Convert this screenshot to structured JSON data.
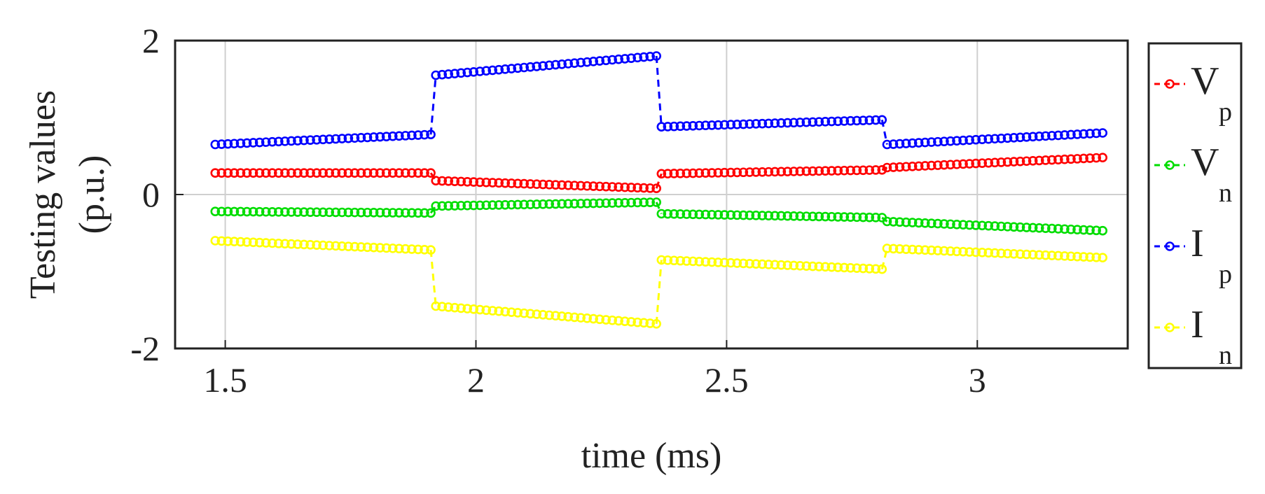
{
  "chart_data": {
    "type": "scatter",
    "title": "",
    "xlabel": "time (ms)",
    "ylabel_line1": "Testing values",
    "ylabel_line2": "(p.u.)",
    "xlim": [
      1.4,
      3.3
    ],
    "ylim": [
      -2,
      2
    ],
    "grid": true,
    "legend_position": "outside-right",
    "x_ticks": [
      {
        "value": 1.5,
        "label": "1.5"
      },
      {
        "value": 2,
        "label": "2"
      },
      {
        "value": 2.5,
        "label": "2.5"
      },
      {
        "value": 3,
        "label": "3"
      }
    ],
    "y_ticks": [
      {
        "value": -2,
        "label": "-2"
      },
      {
        "value": 0,
        "label": "0"
      },
      {
        "value": 2,
        "label": "2"
      }
    ],
    "point_step": 0.0125,
    "series": [
      {
        "name": "V",
        "subscript": "p",
        "color": "#ff0000",
        "segments": [
          {
            "x0": 1.48,
            "x1": 1.91,
            "y0": 0.28,
            "y1": 0.28
          },
          {
            "x0": 1.92,
            "x1": 2.36,
            "y0": 0.18,
            "y1": 0.08
          },
          {
            "x0": 2.37,
            "x1": 2.81,
            "y0": 0.27,
            "y1": 0.32
          },
          {
            "x0": 2.82,
            "x1": 3.25,
            "y0": 0.35,
            "y1": 0.48
          }
        ]
      },
      {
        "name": "V",
        "subscript": "n",
        "color": "#00dd00",
        "segments": [
          {
            "x0": 1.48,
            "x1": 1.91,
            "y0": -0.22,
            "y1": -0.24
          },
          {
            "x0": 1.92,
            "x1": 2.36,
            "y0": -0.15,
            "y1": -0.1
          },
          {
            "x0": 2.37,
            "x1": 2.81,
            "y0": -0.25,
            "y1": -0.3
          },
          {
            "x0": 2.82,
            "x1": 3.25,
            "y0": -0.35,
            "y1": -0.47
          }
        ]
      },
      {
        "name": "I",
        "subscript": "p",
        "color": "#0000ff",
        "segments": [
          {
            "x0": 1.48,
            "x1": 1.91,
            "y0": 0.65,
            "y1": 0.78
          },
          {
            "x0": 1.92,
            "x1": 2.36,
            "y0": 1.55,
            "y1": 1.8
          },
          {
            "x0": 2.37,
            "x1": 2.81,
            "y0": 0.88,
            "y1": 0.97
          },
          {
            "x0": 2.82,
            "x1": 3.25,
            "y0": 0.65,
            "y1": 0.8
          }
        ]
      },
      {
        "name": "I",
        "subscript": "n",
        "color": "#ffff00",
        "segments": [
          {
            "x0": 1.48,
            "x1": 1.91,
            "y0": -0.6,
            "y1": -0.72
          },
          {
            "x0": 1.92,
            "x1": 2.36,
            "y0": -1.45,
            "y1": -1.68
          },
          {
            "x0": 2.37,
            "x1": 2.81,
            "y0": -0.85,
            "y1": -0.97
          },
          {
            "x0": 2.82,
            "x1": 3.25,
            "y0": -0.7,
            "y1": -0.82
          }
        ]
      }
    ]
  }
}
